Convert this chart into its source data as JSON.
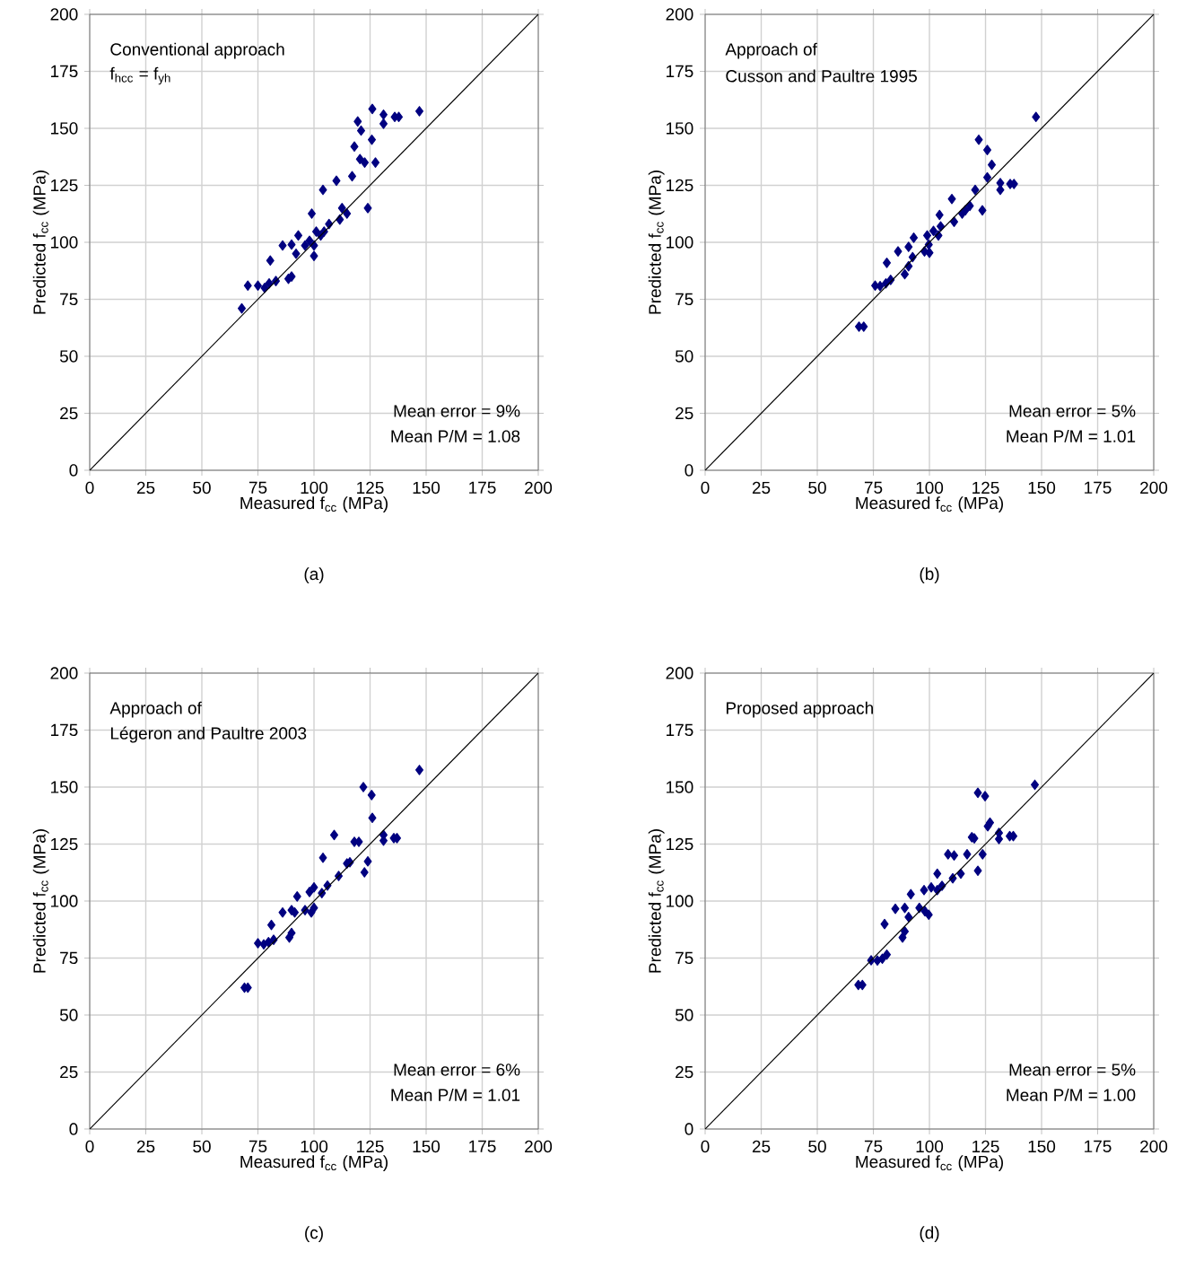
{
  "chart_data": [
    {
      "type": "scatter",
      "xlabel": "Measured f$_{cc}$ (MPa)",
      "ylabel": "Predicted f$_{cc}$ (MPa)",
      "xlim": [
        0,
        200
      ],
      "ylim": [
        0,
        200
      ],
      "xticks": [
        0,
        25,
        50,
        75,
        100,
        125,
        150,
        175,
        200
      ],
      "yticks": [
        0,
        25,
        50,
        75,
        100,
        125,
        150,
        175,
        200
      ],
      "grid": true,
      "annotations": [
        "Conventional approach",
        "f$_{hcc}$ = f$_{yh}$",
        "Mean error = 9%",
        "Mean P/M = 1.08",
        "(a)"
      ],
      "series": [
        {
          "color": "#000080",
          "marker": "diamond",
          "x": [
            67.8,
            70.5,
            75,
            78,
            80,
            83,
            80.5,
            88.6,
            90,
            86,
            90,
            92,
            93,
            96,
            98,
            100,
            100,
            99,
            101,
            103,
            104.5,
            106.7,
            104,
            110,
            112.5,
            114.7,
            111.5,
            117,
            118,
            119.5,
            121,
            120.5,
            122.6,
            124,
            125.8,
            127.4,
            126,
            131,
            131,
            136,
            137.8,
            147
          ],
          "values": [
            71,
            81,
            81,
            80,
            82,
            83,
            92,
            84,
            85,
            98.6,
            99,
            95,
            103,
            98.6,
            100.7,
            98.6,
            94,
            112.6,
            104.7,
            103,
            104.7,
            108,
            123,
            127,
            115,
            112.6,
            110,
            129,
            142,
            153,
            149,
            136.5,
            135,
            115,
            145,
            135,
            158.5,
            156,
            152,
            155,
            155,
            157.5
          ]
        },
        {
          "type": "line",
          "color": "#000000",
          "marker": "none",
          "x": [
            0,
            200
          ],
          "values": [
            0,
            200
          ]
        }
      ]
    },
    {
      "type": "scatter",
      "xlabel": "Measured f$_{cc}$ (MPa)",
      "ylabel": "Predicted f$_{cc}$ (MPa)",
      "xlim": [
        0,
        200
      ],
      "ylim": [
        0,
        200
      ],
      "xticks": [
        0,
        25,
        50,
        75,
        100,
        125,
        150,
        175,
        200
      ],
      "yticks": [
        0,
        25,
        50,
        75,
        100,
        125,
        150,
        175,
        200
      ],
      "grid": true,
      "annotations": [
        "Approach of",
        "Cusson and Paultre 1995",
        "Mean error = 5%",
        "Mean P/M = 1.01",
        "(b)"
      ],
      "series": [
        {
          "color": "#000080",
          "marker": "diamond",
          "x": [
            68.6,
            70.7,
            75.8,
            78,
            80.6,
            82.7,
            81,
            89,
            90.7,
            86,
            90.7,
            92.5,
            93,
            97.8,
            99.7,
            100,
            99,
            101.8,
            104,
            105,
            104.5,
            110,
            111,
            114.6,
            116,
            118,
            120.4,
            122,
            123.6,
            125.8,
            127.8,
            125.8,
            131.6,
            131.6,
            136,
            137.7,
            147.5
          ],
          "values": [
            63,
            63,
            81,
            80.8,
            82,
            83.5,
            91,
            86,
            89.5,
            96,
            98,
            93.5,
            102,
            96,
            99,
            95.4,
            103,
            105,
            103,
            107,
            112,
            119,
            109,
            112.6,
            114,
            116,
            123,
            145,
            114,
            140.5,
            134,
            128.5,
            126,
            123,
            125.6,
            125.6,
            155
          ]
        },
        {
          "type": "line",
          "color": "#000000",
          "marker": "none",
          "x": [
            0,
            200
          ],
          "values": [
            0,
            200
          ]
        }
      ]
    },
    {
      "type": "scatter",
      "xlabel": "Measured f$_{cc}$ (MPa)",
      "ylabel": "Predicted f$_{cc}$ (MPa)",
      "xlim": [
        0,
        200
      ],
      "ylim": [
        0,
        200
      ],
      "xticks": [
        0,
        25,
        50,
        75,
        100,
        125,
        150,
        175,
        200
      ],
      "yticks": [
        0,
        25,
        50,
        75,
        100,
        125,
        150,
        175,
        200
      ],
      "grid": true,
      "annotations": [
        "Approach of",
        "Légeron and Paultre 2003",
        "Mean error = 6%",
        "Mean P/M = 1.01",
        "(c)"
      ],
      "series": [
        {
          "color": "#000080",
          "marker": "diamond",
          "x": [
            69,
            70.5,
            75,
            77.6,
            79.7,
            82,
            81,
            89,
            90,
            86,
            90,
            91.4,
            92.5,
            96,
            98.8,
            100,
            98,
            100,
            103.5,
            106,
            104,
            109,
            111,
            114.7,
            116,
            118,
            120,
            122,
            122.5,
            124,
            125.7,
            126,
            131,
            131,
            135.6,
            137,
            147
          ],
          "values": [
            62,
            62,
            81.5,
            81,
            82,
            83,
            89.5,
            84,
            86,
            95,
            96,
            95,
            102,
            96,
            95,
            97,
            104,
            106,
            103.5,
            106.8,
            119,
            129,
            111,
            116.5,
            117,
            126,
            126,
            150,
            112.6,
            117.4,
            146.5,
            136.5,
            129,
            126.5,
            127.6,
            127.6,
            157.5
          ]
        },
        {
          "type": "line",
          "color": "#000000",
          "marker": "none",
          "x": [
            0,
            200
          ],
          "values": [
            0,
            200
          ]
        }
      ]
    },
    {
      "type": "scatter",
      "xlabel": "Measured f$_{cc}$ (MPa)",
      "ylabel": "Predicted f$_{cc}$ (MPa)",
      "xlim": [
        0,
        200
      ],
      "ylim": [
        0,
        200
      ],
      "xticks": [
        0,
        25,
        50,
        75,
        100,
        125,
        150,
        175,
        200
      ],
      "yticks": [
        0,
        25,
        50,
        75,
        100,
        125,
        150,
        175,
        200
      ],
      "grid": true,
      "annotations": [
        "Proposed approach",
        "Mean error = 5%",
        "Mean P/M = 1.00",
        "(d)"
      ],
      "series": [
        {
          "color": "#000080",
          "marker": "diamond",
          "x": [
            68.3,
            70.1,
            74,
            76.8,
            79,
            81,
            80,
            88,
            89,
            84.8,
            89,
            90.7,
            91.7,
            95.5,
            98,
            99.7,
            97.6,
            100.8,
            103.5,
            105.6,
            103.5,
            108.3,
            111,
            110.4,
            114,
            116.8,
            118.9,
            120,
            121.6,
            121.6,
            123.7,
            124.8,
            126,
            127,
            131,
            131,
            135.8,
            137.4,
            147
          ],
          "values": [
            63.2,
            63.2,
            74,
            73.9,
            74.7,
            76.5,
            89.9,
            84,
            86.7,
            96.6,
            97,
            93,
            103,
            97,
            95.5,
            94,
            104.8,
            106,
            104.8,
            106.7,
            112,
            120.5,
            120,
            110,
            112,
            120.5,
            128,
            127.5,
            147.5,
            113.3,
            120.5,
            146,
            132.8,
            134.4,
            129.9,
            127.2,
            128.5,
            128.5,
            151
          ]
        },
        {
          "type": "line",
          "color": "#000000",
          "marker": "none",
          "x": [
            0,
            200
          ],
          "values": [
            0,
            200
          ]
        }
      ]
    }
  ]
}
